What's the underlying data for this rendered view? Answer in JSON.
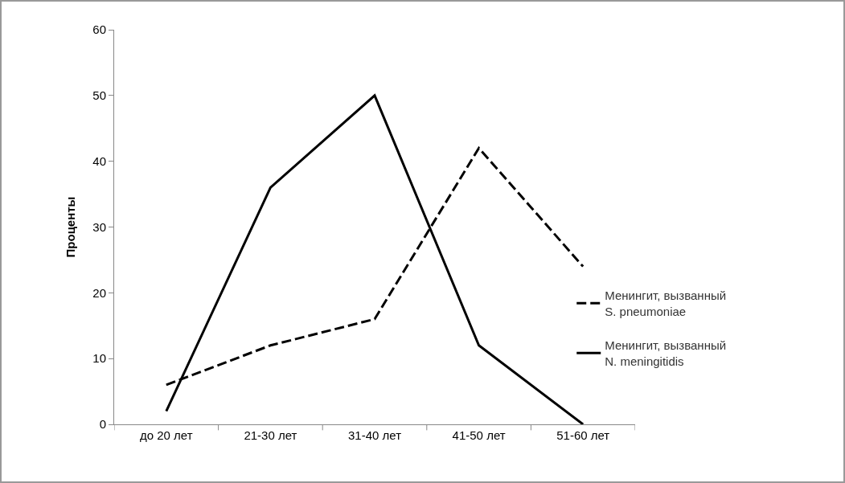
{
  "chart_data": {
    "type": "line",
    "ylabel": "Проценты",
    "categories": [
      "до 20 лет",
      "21-30 лет",
      "31-40 лет",
      "41-50 лет",
      "51-60 лет"
    ],
    "series": [
      {
        "name": "Менингит, вызванный S. pneumoniae",
        "color": "#000000",
        "line_style": "dashed",
        "values": [
          6,
          12,
          16,
          42,
          24
        ]
      },
      {
        "name": "Менингит, вызванный N. meningitidis",
        "color": "#000000",
        "line_style": "solid",
        "values": [
          2,
          36,
          50,
          12,
          0
        ]
      }
    ],
    "ylim": [
      0,
      60
    ],
    "yticks": [
      0,
      10,
      20,
      30,
      40,
      50,
      60
    ],
    "grid": false,
    "legend": "right",
    "marker": "none"
  }
}
